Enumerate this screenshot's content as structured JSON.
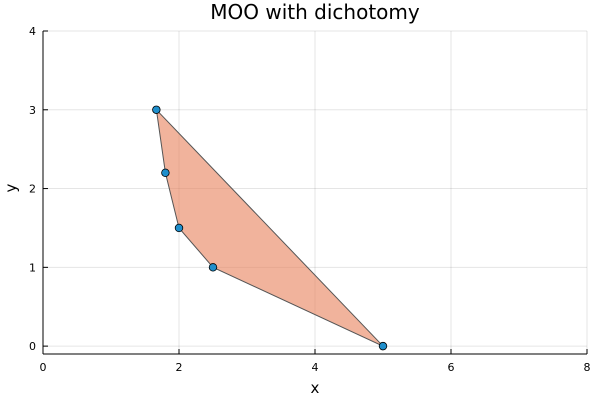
{
  "chart_data": {
    "type": "scatter",
    "title": "MOO with dichotomy",
    "xlabel": "x",
    "ylabel": "y",
    "xlim": [
      0,
      8
    ],
    "ylim": [
      -0.1,
      4
    ],
    "xticks": [
      0,
      2,
      4,
      6,
      8
    ],
    "yticks": [
      0,
      1,
      2,
      3,
      4
    ],
    "grid": true,
    "legend": "none",
    "polygon": {
      "x": [
        1.667,
        1.8,
        2.0,
        2.5,
        5.0
      ],
      "y": [
        3.0,
        2.2,
        1.5,
        1.0,
        0.0
      ],
      "fill_color": "#e8805a",
      "fill_opacity": 0.6,
      "stroke_color": "#555555"
    },
    "series": [
      {
        "x": [
          1.667,
          1.8,
          2.0,
          2.5,
          5.0
        ],
        "y": [
          3.0,
          2.2,
          1.5,
          1.0,
          0.0
        ],
        "color": "#1f8fcc"
      }
    ]
  }
}
